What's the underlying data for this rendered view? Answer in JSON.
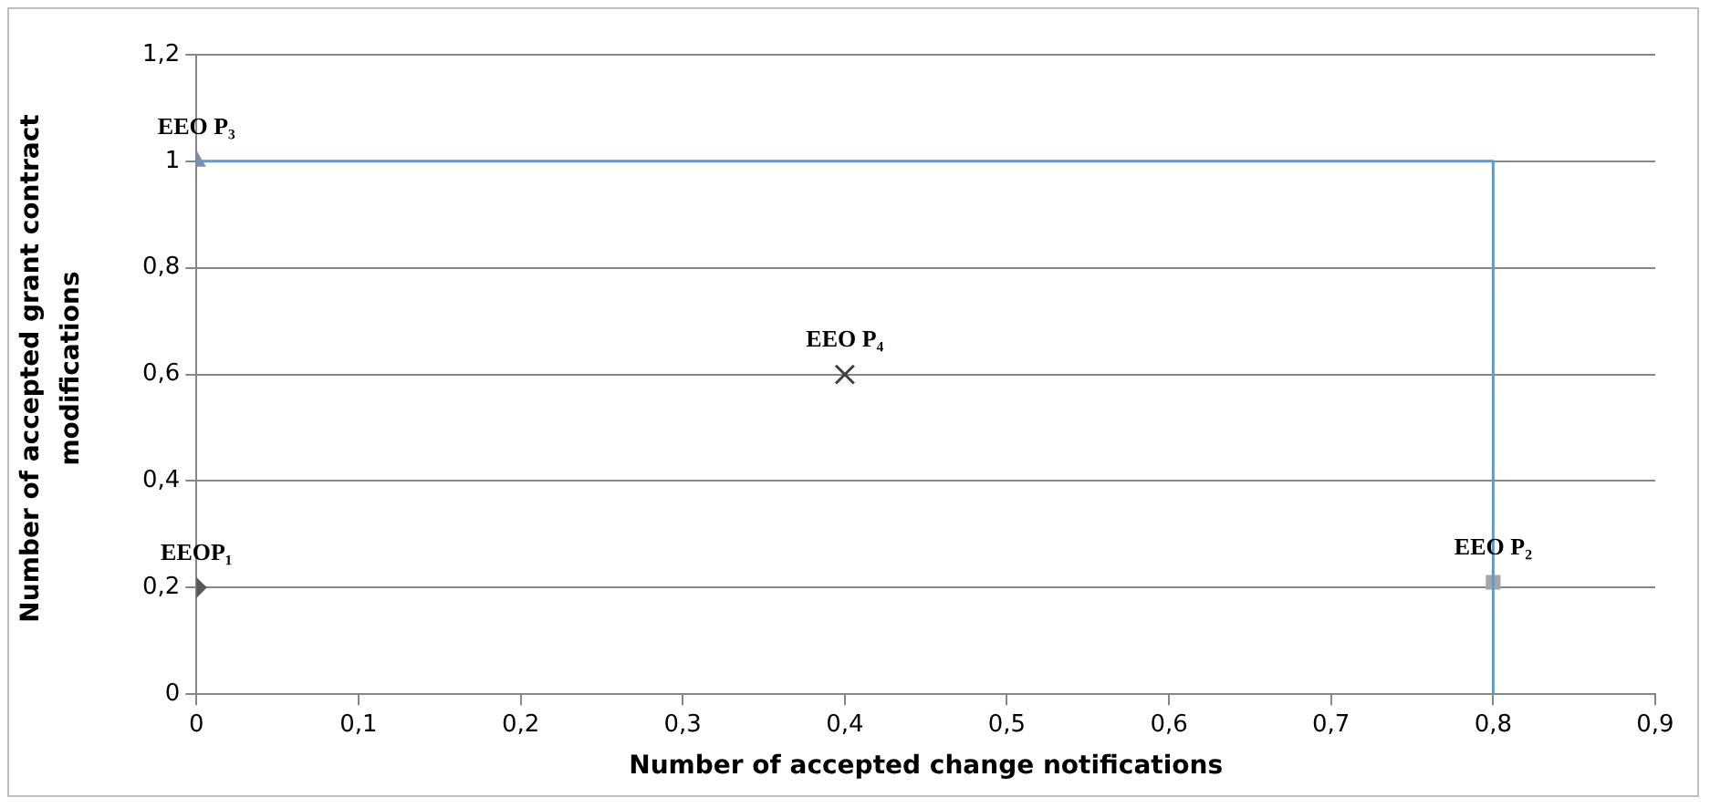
{
  "chart_data": {
    "type": "scatter",
    "xlabel": "Number of accepted change notifications",
    "ylabel": "Number of accepted  grant contract modifications",
    "xlim": [
      0,
      0.9
    ],
    "ylim": [
      0,
      1.2
    ],
    "xticks": [
      0,
      {
        "value": 0.1,
        "label": "0,1"
      },
      {
        "value": 0.2,
        "label": "0,2"
      },
      {
        "value": 0.3,
        "label": "0,3"
      },
      {
        "value": 0.4,
        "label": "0,4"
      },
      {
        "value": 0.5,
        "label": "0,5"
      },
      {
        "value": 0.6,
        "label": "0,6"
      },
      {
        "value": 0.7,
        "label": "0,7"
      },
      {
        "value": 0.8,
        "label": "0,8"
      },
      {
        "value": 0.9,
        "label": "0,9"
      }
    ],
    "yticks": [
      0,
      {
        "value": 0.2,
        "label": "0,2"
      },
      {
        "value": 0.4,
        "label": "0,4"
      },
      {
        "value": 0.6,
        "label": "0,6"
      },
      {
        "value": 0.8,
        "label": "0,8"
      },
      1,
      {
        "value": 1.2,
        "label": "1,2"
      }
    ],
    "grid": "y",
    "legend": false,
    "series": [
      {
        "type": "line",
        "color": "#5b9bd5",
        "x": [
          0,
          0.8,
          0.8
        ],
        "values": [
          1,
          1,
          0
        ],
        "marker": "none",
        "line_style": "solid"
      },
      {
        "color": "#595959",
        "x": [
          0
        ],
        "values": [
          0.2
        ],
        "marker": "diamond"
      },
      {
        "color": "#a6a6a6",
        "x": [
          0.8
        ],
        "values": [
          0.21
        ],
        "marker": "square"
      },
      {
        "color": "#7f8fa6",
        "x": [
          0
        ],
        "values": [
          1
        ],
        "marker": "triangle"
      },
      {
        "color": "#404040",
        "x": [
          0.4
        ],
        "values": [
          0.6
        ],
        "marker": "cross"
      }
    ],
    "annotations": [
      {
        "text": "EEOP₁",
        "x": 0,
        "y": 0.2
      },
      {
        "text": "EEO P₂",
        "x": 0.8,
        "y": 0.21
      },
      {
        "text": "EEO P₃",
        "x": 0,
        "y": 1
      },
      {
        "text": "EEO P₄",
        "x": 0.4,
        "y": 0.6
      }
    ]
  }
}
